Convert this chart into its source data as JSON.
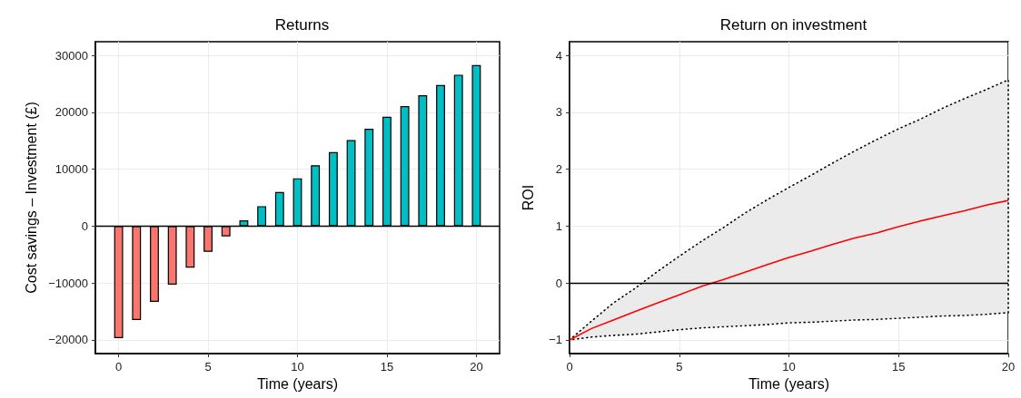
{
  "chart_data": [
    {
      "type": "bar",
      "title": "Returns",
      "xlabel": "Time (years)",
      "ylabel": "Cost savings – Investment (£)",
      "x": [
        0,
        1,
        2,
        3,
        4,
        5,
        6,
        7,
        8,
        9,
        10,
        11,
        12,
        13,
        14,
        15,
        16,
        17,
        18,
        19,
        20
      ],
      "values": [
        -19700,
        -16500,
        -13300,
        -10300,
        -7300,
        -4500,
        -1800,
        1000,
        3500,
        6000,
        8400,
        10700,
        13000,
        15100,
        17100,
        19200,
        21100,
        23000,
        24800,
        26600,
        28300
      ],
      "colors": [
        "#f8766d",
        "#f8766d",
        "#f8766d",
        "#f8766d",
        "#f8766d",
        "#f8766d",
        "#f8766d",
        "#00bfc4",
        "#00bfc4",
        "#00bfc4",
        "#00bfc4",
        "#00bfc4",
        "#00bfc4",
        "#00bfc4",
        "#00bfc4",
        "#00bfc4",
        "#00bfc4",
        "#00bfc4",
        "#00bfc4",
        "#00bfc4",
        "#00bfc4"
      ],
      "xlim": [
        -1.3,
        21.3
      ],
      "xticks": [
        0,
        5,
        10,
        15,
        20
      ],
      "ylim": [
        -22400,
        32400
      ],
      "yticks": [
        {
          "value": -20000,
          "label": "−20000"
        },
        {
          "value": -10000,
          "label": "−10000"
        },
        0,
        10000,
        20000,
        30000
      ],
      "grid": true,
      "ref_lines": [
        {
          "axis": "y",
          "value": 0,
          "color": "#000000"
        }
      ]
    },
    {
      "type": "line",
      "title": "Return on investment",
      "xlabel": "Time (years)",
      "ylabel": "ROI",
      "series": [
        {
          "color": "#ff0000",
          "x": [
            0,
            1,
            2,
            3,
            4,
            5,
            6,
            7,
            8,
            9,
            10,
            11,
            12,
            13,
            14,
            15,
            16,
            17,
            18,
            19,
            20
          ],
          "values": [
            -1.0,
            -0.8,
            -0.65,
            -0.5,
            -0.35,
            -0.21,
            -0.06,
            0.06,
            0.19,
            0.32,
            0.45,
            0.56,
            0.68,
            0.79,
            0.88,
            0.99,
            1.09,
            1.18,
            1.27,
            1.37,
            1.45
          ],
          "lower": [
            -1.0,
            -0.95,
            -0.92,
            -0.9,
            -0.86,
            -0.82,
            -0.79,
            -0.77,
            -0.75,
            -0.73,
            -0.7,
            -0.69,
            -0.67,
            -0.65,
            -0.64,
            -0.62,
            -0.6,
            -0.58,
            -0.57,
            -0.55,
            -0.52
          ],
          "upper": [
            -1.0,
            -0.67,
            -0.35,
            -0.09,
            0.2,
            0.47,
            0.73,
            0.97,
            1.23,
            1.46,
            1.68,
            1.89,
            2.11,
            2.32,
            2.52,
            2.71,
            2.88,
            3.07,
            3.24,
            3.4,
            3.57
          ]
        }
      ],
      "xlim": [
        0,
        20
      ],
      "xticks": [
        0,
        5,
        10,
        15,
        20
      ],
      "ylim": [
        -1.24,
        4.24
      ],
      "yticks": [
        {
          "value": -1,
          "label": "−1"
        },
        0,
        1,
        2,
        3,
        4
      ],
      "grid": true,
      "marker": "none",
      "ref_lines": [
        {
          "axis": "y",
          "value": 0,
          "color": "#000000"
        }
      ]
    }
  ]
}
